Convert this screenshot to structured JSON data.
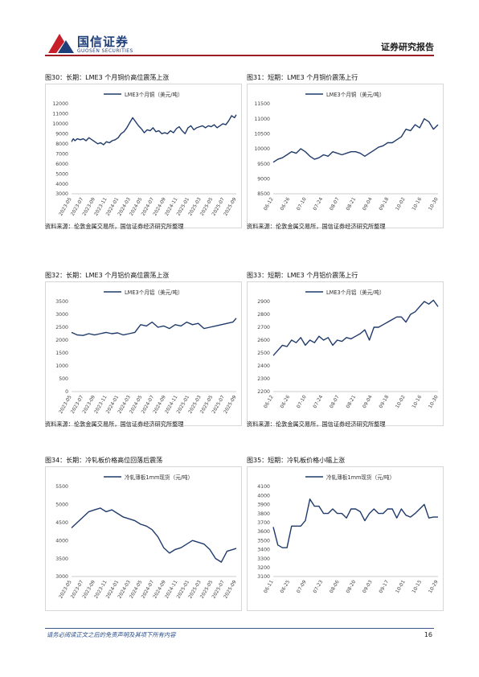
{
  "header": {
    "logo_cn": "国信证券",
    "logo_en": "GUOSEN SECURITIES",
    "report_type": "证券研究报告"
  },
  "footer": {
    "disclaimer": "请务必阅读正文之后的免责声明及其项下所有内容",
    "page_number": "16"
  },
  "colors": {
    "line": "#1f3a6b",
    "brand": "#9b1c23"
  },
  "panels": [
    {
      "title": "图30：长期：LME3 个月铜价高位震荡上涨",
      "source": "资料来源：伦敦金属交易所，国信证券经济研究所整理",
      "chart_data": {
        "type": "line",
        "legend": "LME3个月铜（美元/吨）",
        "ylim": [
          3000,
          12000
        ],
        "yticks": [
          "3000",
          "4000",
          "5000",
          "6000",
          "7000",
          "8000",
          "9000",
          "10000",
          "11000",
          "12000"
        ],
        "xticks": [
          "2023-05",
          "2023-07",
          "2023-09",
          "2023-11",
          "2024-01",
          "2024-03",
          "2024-05",
          "2024-07",
          "2024-09",
          "2024-11",
          "2025-01",
          "2025-03",
          "2025-05",
          "2025-07",
          "2025-09"
        ],
        "x": [
          0,
          0.3,
          0.6,
          1.0,
          1.5,
          2.0,
          2.5,
          3.0,
          3.5,
          4.0,
          4.5,
          5.0,
          5.5,
          6.0,
          6.5,
          7.0,
          7.5,
          8.0,
          8.5,
          9.0,
          9.5,
          10.0,
          10.5,
          11.0,
          11.5,
          12.0,
          12.5,
          13.0,
          13.5,
          14.0,
          14.5,
          15.0,
          15.5,
          16.0,
          16.5,
          17.0,
          17.5,
          18.0,
          18.5,
          19.0,
          19.5,
          20.0,
          20.5,
          21.0,
          21.5,
          22.0,
          22.5,
          23.0,
          23.5,
          24.0,
          24.5,
          25.0,
          25.5,
          26.0,
          26.5,
          27.0,
          27.5,
          28.0,
          28.3
        ],
        "values": [
          8200,
          8500,
          8300,
          8500,
          8400,
          8500,
          8300,
          8600,
          8400,
          8200,
          8000,
          8100,
          7900,
          8200,
          8100,
          8300,
          8400,
          8600,
          9000,
          9200,
          9600,
          10100,
          10600,
          10200,
          9800,
          9500,
          9100,
          9400,
          9300,
          9600,
          9200,
          9300,
          9000,
          9100,
          9000,
          9300,
          9100,
          9500,
          9700,
          9300,
          9000,
          9600,
          9800,
          9400,
          9600,
          9700,
          9800,
          9600,
          9800,
          9700,
          9900,
          9600,
          9800,
          10000,
          9900,
          10300,
          10800,
          10600,
          10900
        ]
      }
    },
    {
      "title": "图31：短期：LME3 个月铜价震荡上行",
      "source": "资料来源：伦敦金属交易所，国信证券经济研究所整理",
      "chart_data": {
        "type": "line",
        "legend": "LME3个月铜（美元/吨）",
        "ylim": [
          8500,
          11500
        ],
        "yticks": [
          "8500",
          "9000",
          "9500",
          "10000",
          "10500",
          "11000",
          "11500"
        ],
        "xticks": [
          "06-12",
          "06-26",
          "07-10",
          "07-24",
          "08-07",
          "08-21",
          "09-04",
          "09-18",
          "10-02",
          "10-16",
          "10-30"
        ],
        "x": [
          0,
          0.3,
          0.6,
          0.9,
          1.2,
          1.5,
          1.8,
          2.1,
          2.4,
          2.7,
          3.0,
          3.3,
          3.6,
          3.9,
          4.2,
          4.5,
          4.8,
          5.1,
          5.4,
          5.7,
          6.0,
          6.3,
          6.6,
          6.9,
          7.2,
          7.5,
          7.8,
          8.1,
          8.4,
          8.7,
          9.0,
          9.3,
          9.6,
          9.9,
          10.2,
          10.5,
          10.8
        ],
        "values": [
          9550,
          9650,
          9700,
          9800,
          9900,
          9850,
          10000,
          9900,
          9750,
          9650,
          9700,
          9800,
          9750,
          9900,
          9850,
          9800,
          9850,
          9900,
          9900,
          9850,
          9750,
          9850,
          9950,
          10050,
          10100,
          10200,
          10200,
          10300,
          10400,
          10650,
          10600,
          10800,
          10700,
          11000,
          10900,
          10650,
          10800
        ]
      }
    },
    {
      "title": "图32：长期：LME3 个月铝价高位震荡上涨",
      "source": "资料来源：伦敦金属交易所，国信证券经济研究所整理",
      "chart_data": {
        "type": "line",
        "legend": "LME3个月铝（美元/吨）",
        "ylim": [
          0,
          3500
        ],
        "yticks": [
          "0",
          "500",
          "1000",
          "1500",
          "2000",
          "2500",
          "3000",
          "3500"
        ],
        "xticks": [
          "2023-05",
          "2023-07",
          "2023-09",
          "2023-11",
          "2024-01",
          "2024-03",
          "2024-05",
          "2024-07",
          "2024-09",
          "2024-11",
          "2025-01",
          "2025-03",
          "2025-05",
          "2025-07",
          "2025-09"
        ],
        "x": [
          0,
          0.5,
          1.0,
          1.5,
          2.0,
          2.5,
          3.0,
          3.5,
          4.0,
          4.5,
          5.0,
          5.5,
          6.0,
          6.5,
          7.0,
          7.5,
          8.0,
          8.5,
          9.0,
          9.5,
          10.0,
          10.5,
          11.0,
          11.5,
          12.0,
          12.5,
          13.0,
          13.5,
          14.0,
          14.3
        ],
        "values": [
          2300,
          2200,
          2180,
          2250,
          2200,
          2250,
          2300,
          2250,
          2280,
          2200,
          2250,
          2300,
          2600,
          2550,
          2700,
          2500,
          2550,
          2450,
          2600,
          2550,
          2700,
          2600,
          2650,
          2450,
          2500,
          2550,
          2600,
          2650,
          2700,
          2850
        ]
      }
    },
    {
      "title": "图33：短期：LME3 个月铝价震荡上行",
      "source": "资料来源：伦敦金属交易所，国信证券经济研究所整理",
      "chart_data": {
        "type": "line",
        "legend": "LME3个月铝（美元/吨）",
        "ylim": [
          2200,
          2900
        ],
        "yticks": [
          "2200",
          "2300",
          "2400",
          "2500",
          "2600",
          "2700",
          "2800",
          "2900"
        ],
        "xticks": [
          "06-12",
          "06-26",
          "07-10",
          "07-24",
          "08-07",
          "08-21",
          "09-04",
          "09-18",
          "10-02",
          "10-16",
          "10-30"
        ],
        "x": [
          0,
          0.3,
          0.6,
          0.9,
          1.2,
          1.5,
          1.8,
          2.1,
          2.4,
          2.7,
          3.0,
          3.3,
          3.6,
          3.9,
          4.2,
          4.5,
          4.8,
          5.1,
          5.4,
          5.7,
          6.0,
          6.3,
          6.6,
          6.9,
          7.2,
          7.5,
          7.8,
          8.1,
          8.4,
          8.7,
          9.0,
          9.3,
          9.6,
          9.9,
          10.2,
          10.5,
          10.8
        ],
        "values": [
          2480,
          2520,
          2560,
          2550,
          2600,
          2580,
          2620,
          2560,
          2600,
          2580,
          2630,
          2600,
          2620,
          2560,
          2600,
          2590,
          2620,
          2610,
          2630,
          2650,
          2680,
          2600,
          2700,
          2700,
          2720,
          2740,
          2760,
          2780,
          2780,
          2740,
          2800,
          2820,
          2860,
          2900,
          2880,
          2910,
          2860
        ]
      }
    },
    {
      "title": "图34：长期：冷轧板价格高位回落后震荡",
      "source": "",
      "chart_data": {
        "type": "line",
        "legend": "冷轧薄板1mm现货（元/吨）",
        "ylim": [
          3000,
          5500
        ],
        "yticks": [
          "3000",
          "3500",
          "4000",
          "4500",
          "5000",
          "5500"
        ],
        "xticks": [
          "2023-05",
          "2023-07",
          "2023-09",
          "2023-11",
          "2024-01",
          "2024-03",
          "2024-05",
          "2024-07",
          "2024-09",
          "2024-11",
          "2025-01",
          "2025-03",
          "2025-05",
          "2025-07",
          "2025-09"
        ],
        "x": [
          0,
          0.5,
          1.0,
          1.5,
          2.0,
          2.5,
          3.0,
          3.5,
          4.0,
          4.5,
          5.0,
          5.5,
          6.0,
          6.5,
          7.0,
          7.5,
          8.0,
          8.5,
          9.0,
          9.5,
          10.0,
          10.5,
          11.0,
          11.5,
          12.0,
          12.5,
          13.0,
          13.5,
          14.0,
          14.3
        ],
        "values": [
          4350,
          4500,
          4650,
          4800,
          4850,
          4900,
          4800,
          4850,
          4750,
          4650,
          4600,
          4550,
          4450,
          4400,
          4300,
          4100,
          3800,
          3650,
          3750,
          3800,
          3900,
          4000,
          3950,
          3900,
          3750,
          3500,
          3400,
          3700,
          3750,
          3780
        ]
      }
    },
    {
      "title": "图35：短期：冷轧板价格小幅上涨",
      "source": "",
      "chart_data": {
        "type": "line",
        "legend": "冷轧薄板1mm现货（元/吨）",
        "ylim": [
          3100,
          4100
        ],
        "yticks": [
          "3100",
          "3200",
          "3300",
          "3400",
          "3500",
          "3600",
          "3700",
          "3800",
          "3900",
          "4000",
          "4100"
        ],
        "xticks": [
          "06-11",
          "06-25",
          "07-09",
          "07-23",
          "08-06",
          "08-20",
          "09-03",
          "09-17",
          "10-01",
          "10-15",
          "10-29"
        ],
        "x": [
          0,
          0.3,
          0.6,
          0.9,
          1.2,
          1.5,
          1.8,
          2.1,
          2.4,
          2.7,
          3.0,
          3.3,
          3.6,
          3.9,
          4.2,
          4.5,
          4.8,
          5.1,
          5.4,
          5.7,
          6.0,
          6.3,
          6.6,
          6.9,
          7.2,
          7.5,
          7.8,
          8.1,
          8.4,
          8.7,
          9.0,
          9.3,
          9.6,
          9.9,
          10.2,
          10.5,
          10.8
        ],
        "values": [
          3650,
          3450,
          3420,
          3420,
          3660,
          3660,
          3660,
          3720,
          3960,
          3880,
          3880,
          3800,
          3800,
          3850,
          3800,
          3800,
          3750,
          3850,
          3850,
          3820,
          3720,
          3800,
          3850,
          3800,
          3800,
          3850,
          3850,
          3750,
          3850,
          3780,
          3760,
          3800,
          3850,
          3900,
          3750,
          3760,
          3760
        ]
      }
    }
  ]
}
